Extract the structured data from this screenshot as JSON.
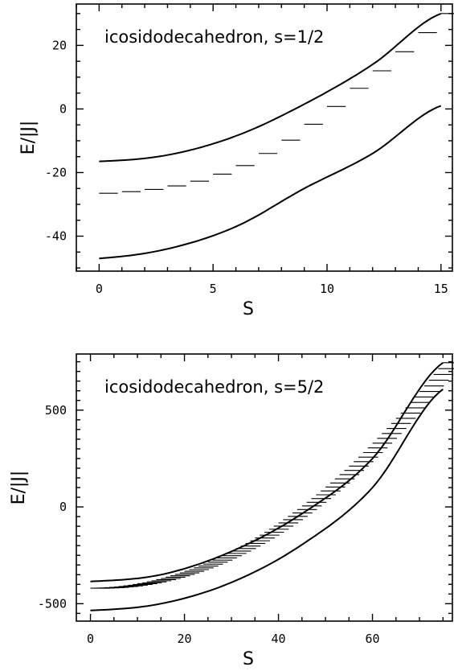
{
  "chart_data": [
    {
      "type": "line",
      "title": "icosidodecahedron, s=1/2",
      "xlabel": "S",
      "ylabel": "E/|J|",
      "xlim": [
        -1,
        15.5
      ],
      "ylim": [
        -51,
        33
      ],
      "xticks": [
        0,
        5,
        10,
        15
      ],
      "yticks": [
        -40,
        -20,
        0,
        20
      ],
      "grid": false,
      "series": [
        {
          "kind": "curve",
          "S_max": 15,
          "values_at_S0": -16.5,
          "values_at_Smax": 30,
          "x": [
            0,
            3,
            6,
            9,
            12,
            15
          ],
          "y": [
            -16.5,
            -14.5,
            -8.5,
            1.5,
            14.0,
            30.0
          ]
        },
        {
          "kind": "curve",
          "S_max": 15,
          "values_at_S0": -47,
          "values_at_Smax": 1,
          "x": [
            0,
            3,
            6,
            9,
            12,
            15
          ],
          "y": [
            -47,
            -44,
            -37,
            -25,
            -14,
            1
          ]
        },
        {
          "kind": "levels",
          "x": [
            0,
            1,
            2,
            3,
            4,
            5,
            6,
            7,
            8,
            9,
            10,
            11,
            12,
            13,
            14,
            15
          ],
          "y": [
            -26.5,
            -26.0,
            -25.3,
            -24.2,
            -22.7,
            -20.5,
            -17.8,
            -14.0,
            -9.8,
            -4.8,
            0.8,
            6.5,
            12.0,
            18.0,
            24.0,
            30.0
          ]
        }
      ]
    },
    {
      "type": "line",
      "title": "icosidodecahedron, s=5/2",
      "xlabel": "S",
      "ylabel": "E/|J|",
      "xlim": [
        -3,
        77
      ],
      "ylim": [
        -590,
        790
      ],
      "xticks": [
        0,
        20,
        40,
        60
      ],
      "yticks": [
        -500,
        0,
        500
      ],
      "grid": false,
      "series": [
        {
          "kind": "curve",
          "S_max": 75,
          "x": [
            0,
            15,
            30,
            45,
            60,
            75
          ],
          "y": [
            -385,
            -350,
            -230,
            -35,
            250,
            745
          ]
        },
        {
          "kind": "curve",
          "S_max": 75,
          "x": [
            0,
            15,
            30,
            45,
            60,
            75
          ],
          "y": [
            -535,
            -500,
            -390,
            -195,
            100,
            608
          ]
        },
        {
          "kind": "levels",
          "S_max": 75,
          "y_at_S0": -420,
          "y_at_Smax": 745
        }
      ]
    }
  ]
}
